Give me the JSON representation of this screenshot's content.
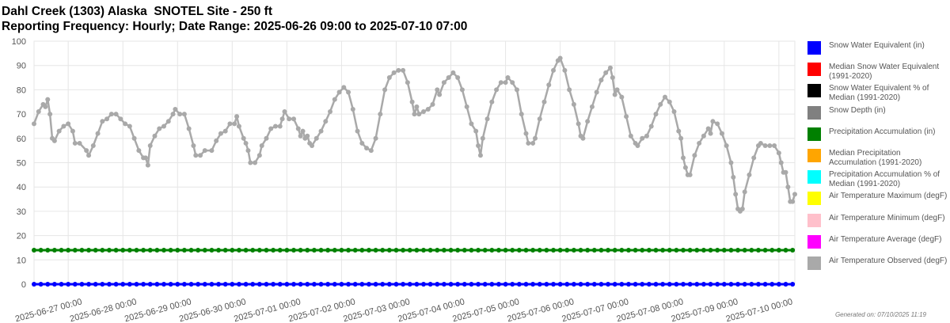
{
  "header": {
    "title_line1": "Dahl Creek (1303) Alaska  SNOTEL Site - 250 ft",
    "title_line2": "Reporting Frequency: Hourly; Date Range: 2025-06-26 09:00 to 2025-07-10 07:00"
  },
  "footer": {
    "generated": "Generated on: 07/10/2025 11:19"
  },
  "chart_data": {
    "type": "line",
    "title": "Dahl Creek (1303) Alaska  SNOTEL Site - 250 ft",
    "subtitle": "Reporting Frequency: Hourly; Date Range: 2025-06-26 09:00 to 2025-07-10 07:00",
    "xlabel": "",
    "ylabel": "",
    "ylim": [
      0,
      100
    ],
    "yticks": [
      0,
      10,
      20,
      30,
      40,
      50,
      60,
      70,
      80,
      90,
      100
    ],
    "xlim": [
      "2025-06-26 09:00",
      "2025-07-10 07:00"
    ],
    "xtick_labels": [
      "2025-06-27 00:00",
      "2025-06-28 00:00",
      "2025-06-29 00:00",
      "2025-06-30 00:00",
      "2025-07-01 00:00",
      "2025-07-02 00:00",
      "2025-07-03 00:00",
      "2025-07-04 00:00",
      "2025-07-05 00:00",
      "2025-07-06 00:00",
      "2025-07-07 00:00",
      "2025-07-08 00:00",
      "2025-07-09 00:00",
      "2025-07-10 00:00"
    ],
    "grid": true,
    "legend_position": "right",
    "legend": [
      {
        "name": "Snow Water Equivalent (in)",
        "color": "#0000ff"
      },
      {
        "name": "Median Snow Water Equivalent (1991-2020)",
        "color": "#ff0000"
      },
      {
        "name": "Snow Water Equivalent % of Median (1991-2020)",
        "color": "#000000"
      },
      {
        "name": "Snow Depth (in)",
        "color": "#808080"
      },
      {
        "name": "Precipitation Accumulation (in)",
        "color": "#008000"
      },
      {
        "name": "Median Precipitation Accumulation (1991-2020)",
        "color": "#ffa500"
      },
      {
        "name": "Precipitation Accumulation % of Median (1991-2020)",
        "color": "#00ffff"
      },
      {
        "name": "Air Temperature Maximum (degF)",
        "color": "#ffff00"
      },
      {
        "name": "Air Temperature Minimum (degF)",
        "color": "#ffc0cb"
      },
      {
        "name": "Air Temperature Average (degF)",
        "color": "#ff00ff"
      },
      {
        "name": "Air Temperature Observed (degF)",
        "color": "#a9a9a9"
      }
    ],
    "series": [
      {
        "name": "Air Temperature Observed (degF)",
        "color": "#a9a9a9",
        "points": [
          [
            "2025-06-26 09:00",
            66
          ],
          [
            "2025-06-26 11:00",
            71
          ],
          [
            "2025-06-26 13:00",
            74
          ],
          [
            "2025-06-26 14:00",
            73
          ],
          [
            "2025-06-26 15:00",
            76
          ],
          [
            "2025-06-26 16:00",
            70
          ],
          [
            "2025-06-26 17:00",
            60
          ],
          [
            "2025-06-26 18:00",
            59
          ],
          [
            "2025-06-26 20:00",
            63
          ],
          [
            "2025-06-26 22:00",
            65
          ],
          [
            "2025-06-27 00:00",
            66
          ],
          [
            "2025-06-27 02:00",
            63
          ],
          [
            "2025-06-27 03:00",
            58
          ],
          [
            "2025-06-27 05:00",
            58
          ],
          [
            "2025-06-27 08:00",
            55
          ],
          [
            "2025-06-27 09:00",
            53
          ],
          [
            "2025-06-27 11:00",
            57
          ],
          [
            "2025-06-27 13:00",
            62
          ],
          [
            "2025-06-27 15:00",
            67
          ],
          [
            "2025-06-27 17:00",
            68
          ],
          [
            "2025-06-27 19:00",
            70
          ],
          [
            "2025-06-27 21:00",
            70
          ],
          [
            "2025-06-27 23:00",
            68
          ],
          [
            "2025-06-28 01:00",
            66
          ],
          [
            "2025-06-28 03:00",
            65
          ],
          [
            "2025-06-28 05:00",
            60
          ],
          [
            "2025-06-28 07:00",
            55
          ],
          [
            "2025-06-28 09:00",
            52
          ],
          [
            "2025-06-28 10:00",
            52
          ],
          [
            "2025-06-28 11:00",
            49
          ],
          [
            "2025-06-28 12:00",
            57
          ],
          [
            "2025-06-28 14:00",
            61
          ],
          [
            "2025-06-28 16:00",
            64
          ],
          [
            "2025-06-28 18:00",
            65
          ],
          [
            "2025-06-28 20:00",
            67
          ],
          [
            "2025-06-28 22:00",
            70
          ],
          [
            "2025-06-28 23:00",
            72
          ],
          [
            "2025-06-29 01:00",
            70
          ],
          [
            "2025-06-29 03:00",
            70
          ],
          [
            "2025-06-29 05:00",
            64
          ],
          [
            "2025-06-29 07:00",
            57
          ],
          [
            "2025-06-29 08:00",
            53
          ],
          [
            "2025-06-29 10:00",
            53
          ],
          [
            "2025-06-29 12:00",
            55
          ],
          [
            "2025-06-29 15:00",
            55
          ],
          [
            "2025-06-29 17:00",
            59
          ],
          [
            "2025-06-29 19:00",
            62
          ],
          [
            "2025-06-29 21:00",
            63
          ],
          [
            "2025-06-29 23:00",
            66
          ],
          [
            "2025-06-30 01:00",
            66
          ],
          [
            "2025-06-30 02:00",
            69
          ],
          [
            "2025-06-30 03:00",
            65
          ],
          [
            "2025-06-30 05:00",
            60
          ],
          [
            "2025-06-30 06:00",
            58
          ],
          [
            "2025-06-30 07:00",
            55
          ],
          [
            "2025-06-30 08:00",
            50
          ],
          [
            "2025-06-30 10:00",
            50
          ],
          [
            "2025-06-30 12:00",
            53
          ],
          [
            "2025-06-30 13:00",
            57
          ],
          [
            "2025-06-30 15:00",
            60
          ],
          [
            "2025-06-30 17:00",
            64
          ],
          [
            "2025-06-30 19:00",
            65
          ],
          [
            "2025-06-30 21:00",
            65
          ],
          [
            "2025-06-30 22:00",
            68
          ],
          [
            "2025-06-30 23:00",
            71
          ],
          [
            "2025-07-01 01:00",
            68
          ],
          [
            "2025-07-01 03:00",
            68
          ],
          [
            "2025-07-01 05:00",
            64
          ],
          [
            "2025-07-01 06:00",
            61
          ],
          [
            "2025-07-01 07:00",
            63
          ],
          [
            "2025-07-01 08:00",
            60
          ],
          [
            "2025-07-01 09:00",
            61
          ],
          [
            "2025-07-01 10:00",
            58
          ],
          [
            "2025-07-01 11:00",
            57
          ],
          [
            "2025-07-01 13:00",
            60
          ],
          [
            "2025-07-01 15:00",
            63
          ],
          [
            "2025-07-01 17:00",
            67
          ],
          [
            "2025-07-01 19:00",
            71
          ],
          [
            "2025-07-01 21:00",
            76
          ],
          [
            "2025-07-01 23:00",
            79
          ],
          [
            "2025-07-02 01:00",
            81
          ],
          [
            "2025-07-02 03:00",
            79
          ],
          [
            "2025-07-02 05:00",
            72
          ],
          [
            "2025-07-02 07:00",
            63
          ],
          [
            "2025-07-02 09:00",
            58
          ],
          [
            "2025-07-02 11:00",
            56
          ],
          [
            "2025-07-02 13:00",
            55
          ],
          [
            "2025-07-02 15:00",
            60
          ],
          [
            "2025-07-02 17:00",
            70
          ],
          [
            "2025-07-02 19:00",
            80
          ],
          [
            "2025-07-02 21:00",
            85
          ],
          [
            "2025-07-02 23:00",
            87
          ],
          [
            "2025-07-03 01:00",
            88
          ],
          [
            "2025-07-03 03:00",
            88
          ],
          [
            "2025-07-03 05:00",
            83
          ],
          [
            "2025-07-03 07:00",
            75
          ],
          [
            "2025-07-03 08:00",
            70
          ],
          [
            "2025-07-03 09:00",
            73
          ],
          [
            "2025-07-03 10:00",
            70
          ],
          [
            "2025-07-03 12:00",
            71
          ],
          [
            "2025-07-03 14:00",
            72
          ],
          [
            "2025-07-03 16:00",
            74
          ],
          [
            "2025-07-03 18:00",
            80
          ],
          [
            "2025-07-03 19:00",
            78
          ],
          [
            "2025-07-03 21:00",
            83
          ],
          [
            "2025-07-03 23:00",
            85
          ],
          [
            "2025-07-04 01:00",
            87
          ],
          [
            "2025-07-04 03:00",
            85
          ],
          [
            "2025-07-04 05:00",
            80
          ],
          [
            "2025-07-04 07:00",
            73
          ],
          [
            "2025-07-04 09:00",
            66
          ],
          [
            "2025-07-04 11:00",
            63
          ],
          [
            "2025-07-04 12:00",
            57
          ],
          [
            "2025-07-04 13:00",
            53
          ],
          [
            "2025-07-04 14:00",
            60
          ],
          [
            "2025-07-04 16:00",
            68
          ],
          [
            "2025-07-04 18:00",
            75
          ],
          [
            "2025-07-04 20:00",
            80
          ],
          [
            "2025-07-04 22:00",
            83
          ],
          [
            "2025-07-05 00:00",
            83
          ],
          [
            "2025-07-05 01:00",
            85
          ],
          [
            "2025-07-05 03:00",
            83
          ],
          [
            "2025-07-05 05:00",
            80
          ],
          [
            "2025-07-05 07:00",
            70
          ],
          [
            "2025-07-05 09:00",
            62
          ],
          [
            "2025-07-05 10:00",
            58
          ],
          [
            "2025-07-05 12:00",
            58
          ],
          [
            "2025-07-05 13:00",
            60
          ],
          [
            "2025-07-05 15:00",
            68
          ],
          [
            "2025-07-05 17:00",
            75
          ],
          [
            "2025-07-05 19:00",
            82
          ],
          [
            "2025-07-05 21:00",
            88
          ],
          [
            "2025-07-05 23:00",
            92
          ],
          [
            "2025-07-06 00:00",
            93
          ],
          [
            "2025-07-06 02:00",
            88
          ],
          [
            "2025-07-06 04:00",
            80
          ],
          [
            "2025-07-06 06:00",
            74
          ],
          [
            "2025-07-06 08:00",
            66
          ],
          [
            "2025-07-06 09:00",
            61
          ],
          [
            "2025-07-06 10:00",
            60
          ],
          [
            "2025-07-06 12:00",
            67
          ],
          [
            "2025-07-06 14:00",
            73
          ],
          [
            "2025-07-06 16:00",
            79
          ],
          [
            "2025-07-06 18:00",
            84
          ],
          [
            "2025-07-06 20:00",
            87
          ],
          [
            "2025-07-06 22:00",
            89
          ],
          [
            "2025-07-06 23:00",
            85
          ],
          [
            "2025-07-07 00:00",
            78
          ],
          [
            "2025-07-07 01:00",
            80
          ],
          [
            "2025-07-07 03:00",
            77
          ],
          [
            "2025-07-07 05:00",
            69
          ],
          [
            "2025-07-07 07:00",
            61
          ],
          [
            "2025-07-07 09:00",
            58
          ],
          [
            "2025-07-07 10:00",
            57
          ],
          [
            "2025-07-07 12:00",
            60
          ],
          [
            "2025-07-07 14:00",
            61
          ],
          [
            "2025-07-07 16:00",
            65
          ],
          [
            "2025-07-07 18:00",
            70
          ],
          [
            "2025-07-07 20:00",
            74
          ],
          [
            "2025-07-07 22:00",
            77
          ],
          [
            "2025-07-08 00:00",
            75
          ],
          [
            "2025-07-08 02:00",
            71
          ],
          [
            "2025-07-08 04:00",
            63
          ],
          [
            "2025-07-08 05:00",
            60
          ],
          [
            "2025-07-08 06:00",
            52
          ],
          [
            "2025-07-08 07:00",
            48
          ],
          [
            "2025-07-08 08:00",
            45
          ],
          [
            "2025-07-08 09:00",
            45
          ],
          [
            "2025-07-08 11:00",
            53
          ],
          [
            "2025-07-08 13:00",
            58
          ],
          [
            "2025-07-08 15:00",
            61
          ],
          [
            "2025-07-08 17:00",
            64
          ],
          [
            "2025-07-08 18:00",
            62
          ],
          [
            "2025-07-08 19:00",
            67
          ],
          [
            "2025-07-08 21:00",
            66
          ],
          [
            "2025-07-08 23:00",
            62
          ],
          [
            "2025-07-09 01:00",
            57
          ],
          [
            "2025-07-09 03:00",
            50
          ],
          [
            "2025-07-09 04:00",
            44
          ],
          [
            "2025-07-09 05:00",
            37
          ],
          [
            "2025-07-09 06:00",
            31
          ],
          [
            "2025-07-09 07:00",
            30
          ],
          [
            "2025-07-09 08:00",
            31
          ],
          [
            "2025-07-09 09:00",
            38
          ],
          [
            "2025-07-09 11:00",
            45
          ],
          [
            "2025-07-09 13:00",
            52
          ],
          [
            "2025-07-09 15:00",
            57
          ],
          [
            "2025-07-09 16:00",
            58
          ],
          [
            "2025-07-09 18:00",
            57
          ],
          [
            "2025-07-09 20:00",
            57
          ],
          [
            "2025-07-09 22:00",
            57
          ],
          [
            "2025-07-10 00:00",
            54
          ],
          [
            "2025-07-10 01:00",
            50
          ],
          [
            "2025-07-10 02:00",
            46
          ],
          [
            "2025-07-10 03:00",
            46
          ],
          [
            "2025-07-10 04:00",
            40
          ],
          [
            "2025-07-10 05:00",
            34
          ],
          [
            "2025-07-10 06:00",
            34
          ],
          [
            "2025-07-10 07:00",
            37
          ]
        ]
      },
      {
        "name": "Precipitation Accumulation (in)",
        "color": "#008000",
        "points": [
          [
            "2025-06-26 09:00",
            14
          ],
          [
            "2025-07-10 07:00",
            14
          ]
        ]
      },
      {
        "name": "Snow Water Equivalent (in)",
        "color": "#0000ff",
        "points": [
          [
            "2025-06-26 09:00",
            0
          ],
          [
            "2025-07-10 07:00",
            0
          ]
        ]
      }
    ]
  }
}
